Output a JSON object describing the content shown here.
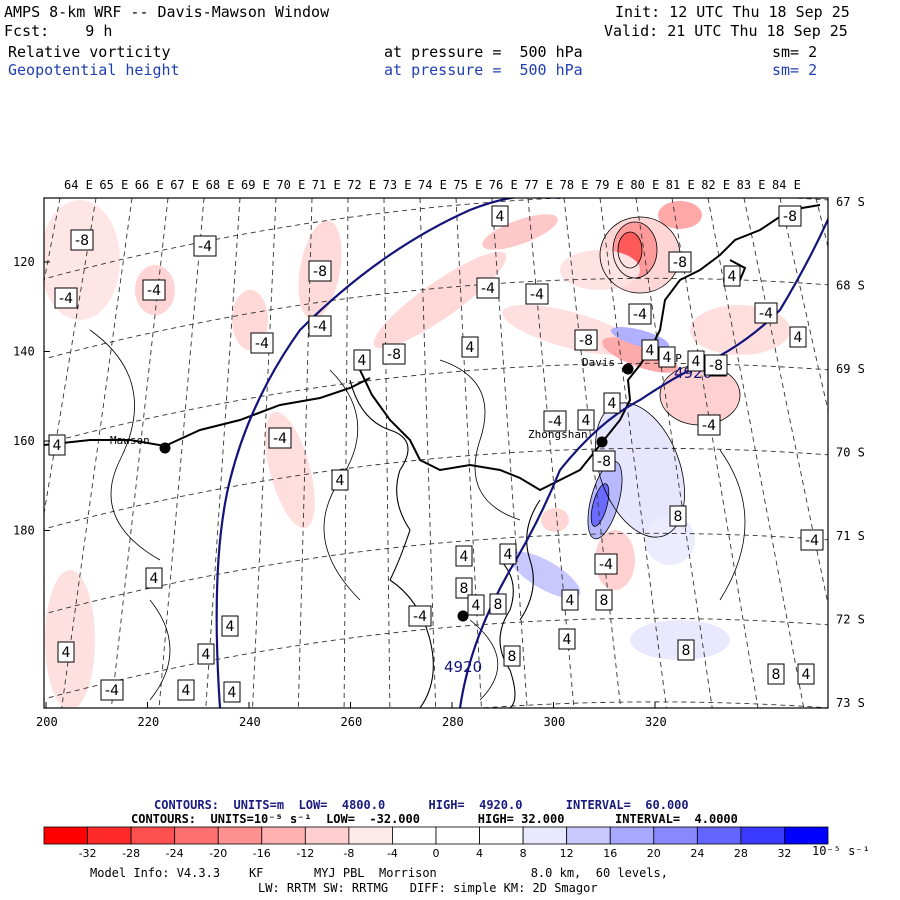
{
  "header": {
    "title": "AMPS 8-km WRF -- Davis-Mawson Window",
    "forecast": "Fcst:    9 h",
    "init": "Init: 12 UTC Thu 18 Sep 25",
    "valid": "Valid: 21 UTC Thu 18 Sep 25",
    "field1": {
      "name": "Relative vorticity",
      "level": "at pressure =  500 hPa",
      "smooth": "sm= 2"
    },
    "field2": {
      "name": "Geopotential height",
      "level": "at pressure =  500 hPa",
      "smooth": "sm= 2"
    }
  },
  "map": {
    "lon_labels": [
      "64 E",
      "65 E",
      "66 E",
      "67 E",
      "68 E",
      "69 E",
      "70 E",
      "71 E",
      "72 E",
      "73 E",
      "74 E",
      "75 E",
      "76 E",
      "77 E",
      "78 E",
      "79 E",
      "80 E",
      "81 E",
      "82 E",
      "83 E",
      "84 E"
    ],
    "lat_labels": [
      "67 S",
      "68 S",
      "69 S",
      "70 S",
      "71 S",
      "72 S",
      "73 S"
    ],
    "y_ticks": [
      "120",
      "140",
      "160",
      "180"
    ],
    "x_ticks": [
      "200",
      "220",
      "240",
      "260",
      "280",
      "300",
      "320"
    ],
    "stations": [
      {
        "name": "Mawson"
      },
      {
        "name": "Davis"
      },
      {
        "name": "Zhongshan"
      },
      {
        "name": "LHP"
      },
      {
        "name": ""
      }
    ],
    "height_labels": [
      "4920",
      "4920"
    ],
    "vorticity_labels": [
      "-8",
      "-4",
      "-4",
      "-8",
      "-4",
      "-4",
      "4",
      "-4",
      "-8",
      "-4",
      "4",
      "4",
      "-4",
      "-4",
      "-8",
      "4",
      "-8",
      "4",
      "-4",
      "4",
      "-8",
      "-4",
      "-4",
      "4",
      "-4",
      "4",
      "4",
      "4",
      "4",
      "4",
      "-8",
      "4",
      "8",
      "8",
      "4",
      "-4",
      "8",
      "8",
      "8",
      "8",
      "4",
      "8",
      "4",
      "4",
      "4",
      "-4",
      "4",
      "4",
      "-4",
      "4",
      "4",
      "4",
      "4",
      "-4",
      "4",
      "-8"
    ]
  },
  "footer": {
    "contours1": "CONTOURS:  UNITS=m  LOW=  4800.0      HIGH=  4920.0      INTERVAL=  60.000",
    "contours2": "CONTOURS:  UNITS=10⁻⁵ s⁻¹  LOW=  -32.000        HIGH= 32.000       INTERVAL=  4.0000",
    "colorbar_labels": [
      "-32",
      "-28",
      "-24",
      "-20",
      "-16",
      "-12",
      "-8",
      "-4",
      "0",
      "4",
      "8",
      "12",
      "16",
      "20",
      "24",
      "28",
      "32"
    ],
    "colorbar_unit": "10⁻⁵ s⁻¹",
    "colorbar_colors": [
      "#ff0000",
      "#ff2b2b",
      "#ff5050",
      "#ff7070",
      "#ff9090",
      "#ffb0b0",
      "#ffcfcf",
      "#ffeaea",
      "#ffffff",
      "#ffffff",
      "#e8e8ff",
      "#c8c8ff",
      "#a8a8ff",
      "#8888ff",
      "#6464ff",
      "#3a3aff",
      "#0000ff"
    ],
    "model_info": "Model Info: V4.3.3    KF       MYJ PBL  Morrison             8.0 km,  60 levels,",
    "physics": "LW: RRTM SW: RRTMG   DIFF: simple KM: 2D Smagor"
  }
}
